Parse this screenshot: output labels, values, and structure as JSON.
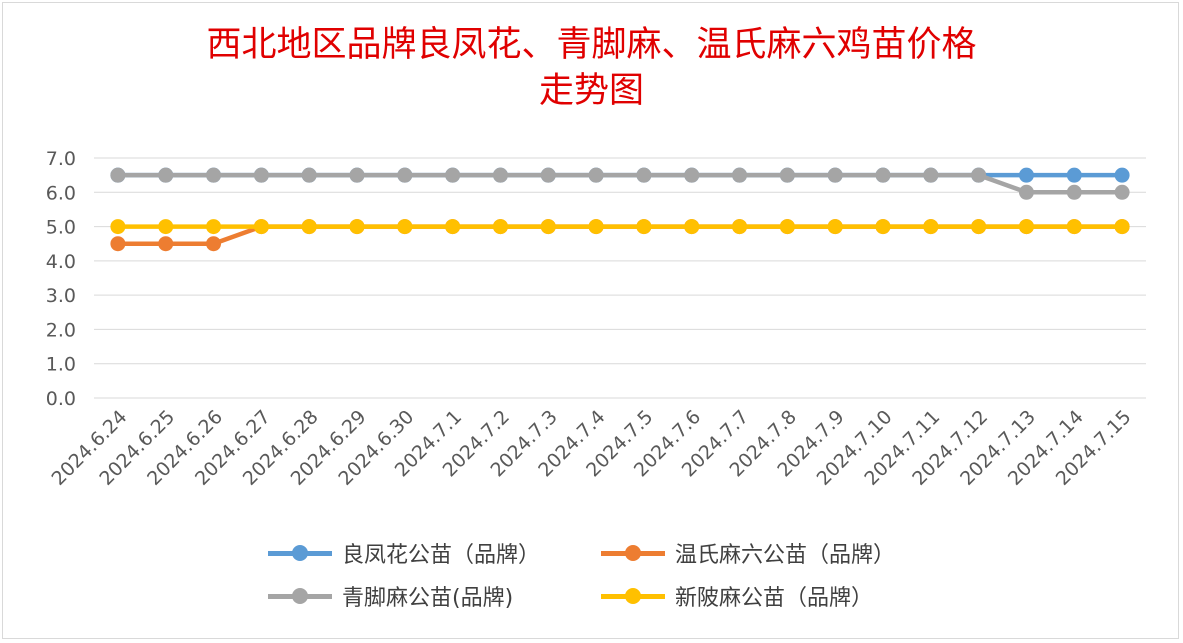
{
  "title_lines": [
    "西北地区品牌良凤花、青脚麻、温氏麻六鸡苗价格",
    "走势图"
  ],
  "colors": {
    "title": "#e00000",
    "grid": "#d9d9d9",
    "axis_text": "#595959"
  },
  "chart_data": {
    "type": "line",
    "title": "西北地区品牌良凤花、青脚麻、温氏麻六鸡苗价格走势图",
    "categories": [
      "2024.6.24",
      "2024.6.25",
      "2024.6.26",
      "2024.6.27",
      "2024.6.28",
      "2024.6.29",
      "2024.6.30",
      "2024.7.1",
      "2024.7.2",
      "2024.7.3",
      "2024.7.4",
      "2024.7.5",
      "2024.7.6",
      "2024.7.7",
      "2024.7.8",
      "2024.7.9",
      "2024.7.10",
      "2024.7.11",
      "2024.7.12",
      "2024.7.13",
      "2024.7.14",
      "2024.7.15"
    ],
    "yticks": [
      "0.0",
      "1.0",
      "2.0",
      "3.0",
      "4.0",
      "5.0",
      "6.0",
      "7.0"
    ],
    "ylim": [
      0,
      7
    ],
    "grid": true,
    "legend_position": "bottom",
    "series": [
      {
        "name": "良凤花公苗（品牌）",
        "color": "#5b9bd5",
        "values": [
          6.5,
          6.5,
          6.5,
          6.5,
          6.5,
          6.5,
          6.5,
          6.5,
          6.5,
          6.5,
          6.5,
          6.5,
          6.5,
          6.5,
          6.5,
          6.5,
          6.5,
          6.5,
          6.5,
          6.5,
          6.5,
          6.5
        ]
      },
      {
        "name": "温氏麻六公苗（品牌）",
        "color": "#ed7d31",
        "values": [
          4.5,
          4.5,
          4.5,
          5.0,
          5.0,
          5.0,
          5.0,
          5.0,
          5.0,
          5.0,
          5.0,
          5.0,
          5.0,
          5.0,
          5.0,
          5.0,
          5.0,
          5.0,
          5.0,
          5.0,
          5.0,
          5.0
        ]
      },
      {
        "name": "青脚麻公苗(品牌)",
        "color": "#a5a5a5",
        "values": [
          6.5,
          6.5,
          6.5,
          6.5,
          6.5,
          6.5,
          6.5,
          6.5,
          6.5,
          6.5,
          6.5,
          6.5,
          6.5,
          6.5,
          6.5,
          6.5,
          6.5,
          6.5,
          6.5,
          6.0,
          6.0,
          6.0
        ]
      },
      {
        "name": "新陂麻公苗（品牌）",
        "color": "#ffc000",
        "values": [
          5.0,
          5.0,
          5.0,
          5.0,
          5.0,
          5.0,
          5.0,
          5.0,
          5.0,
          5.0,
          5.0,
          5.0,
          5.0,
          5.0,
          5.0,
          5.0,
          5.0,
          5.0,
          5.0,
          5.0,
          5.0,
          5.0
        ]
      }
    ]
  }
}
